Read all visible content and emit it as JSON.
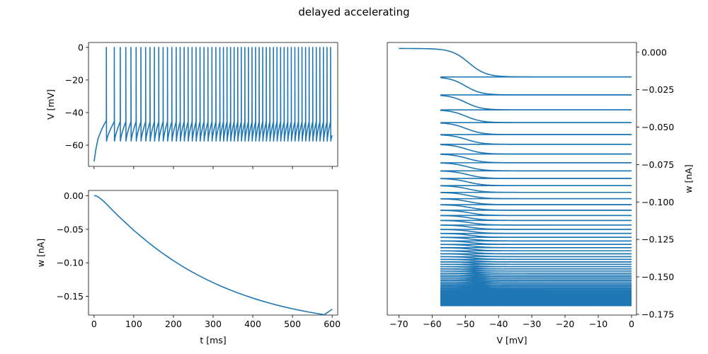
{
  "figure_title": "delayed accelerating",
  "chart_data": [
    {
      "type": "line",
      "panel": "voltage",
      "xlabel": "",
      "ylabel": "V [mV]",
      "xlim": [
        -14,
        614
      ],
      "ylim": [
        -73,
        3
      ],
      "x_ticks": [
        0,
        100,
        200,
        300,
        400,
        500,
        600
      ],
      "y_ticks": [
        0,
        -20,
        -40,
        -60
      ],
      "y_tick_labels": [
        "0",
        "−20",
        "−40",
        "−60"
      ],
      "x_tick_labels_shown": false,
      "series": [
        {
          "color": "#1f77b4",
          "initial_rise": {
            "x": [
              0,
              5,
              10,
              18,
              26,
              31
            ],
            "y": [
              -70,
              -62,
              -56,
              -51,
              -47,
              -45
            ]
          },
          "spike_times": [
            31,
            51,
            66,
            80,
            93,
            106,
            118,
            130,
            141,
            152,
            163,
            174,
            185,
            196,
            207,
            217,
            227,
            237,
            247,
            257,
            267,
            277,
            287,
            297,
            307,
            317,
            326,
            335,
            344,
            353,
            362,
            371,
            380,
            389,
            398,
            407,
            416,
            425,
            434,
            443,
            452,
            461,
            470,
            479,
            488,
            497,
            506,
            515,
            524,
            533,
            542,
            551,
            560,
            569,
            578,
            587,
            596
          ],
          "spike_peak": 0,
          "reset": -57.5,
          "end": {
            "x": 600,
            "y": -54
          }
        }
      ]
    },
    {
      "type": "line",
      "panel": "adaptation",
      "xlabel": "t [ms]",
      "ylabel": "w [nA]",
      "xlim": [
        -14,
        614
      ],
      "ylim": [
        -0.178,
        0.008
      ],
      "x_ticks": [
        0,
        100,
        200,
        300,
        400,
        500,
        600
      ],
      "x_tick_labels": [
        "0",
        "100",
        "200",
        "300",
        "400",
        "500",
        "600"
      ],
      "y_ticks": [
        0.0,
        -0.05,
        -0.1,
        -0.15
      ],
      "y_tick_labels": [
        "0.00",
        "−0.05",
        "−0.10",
        "−0.15"
      ],
      "series": [
        {
          "color": "#1f77b4",
          "x": [
            0,
            5,
            10,
            20,
            30,
            40,
            50,
            60,
            70,
            80,
            90,
            100,
            120,
            140,
            160,
            180,
            200,
            220,
            240,
            260,
            280,
            300,
            320,
            340,
            360,
            380,
            400,
            420,
            440,
            460,
            480,
            500,
            520,
            540,
            560,
            580,
            600
          ],
          "y": [
            0.0,
            0.0,
            -0.0015,
            -0.006,
            -0.0115,
            -0.0175,
            -0.0235,
            -0.0295,
            -0.035,
            -0.0405,
            -0.046,
            -0.0515,
            -0.0615,
            -0.0712,
            -0.0803,
            -0.0888,
            -0.0968,
            -0.1043,
            -0.1113,
            -0.1178,
            -0.1239,
            -0.1296,
            -0.1349,
            -0.1398,
            -0.1444,
            -0.1487,
            -0.1527,
            -0.1564,
            -0.1598,
            -0.163,
            -0.1659,
            -0.1686,
            -0.1711,
            -0.1734,
            -0.1755,
            -0.1775,
            -0.1693
          ]
        }
      ]
    },
    {
      "type": "line",
      "panel": "phase-plane",
      "xlabel": "V [mV]",
      "ylabel": "w [nA]",
      "xlim": [
        -73.5,
        1.5
      ],
      "ylim": [
        -0.1755,
        0.0065
      ],
      "x_ticks": [
        -70,
        -60,
        -50,
        -40,
        -30,
        -20,
        -10,
        0
      ],
      "x_tick_labels": [
        "−70",
        "−60",
        "−50",
        "−40",
        "−30",
        "−20",
        "−10",
        "0"
      ],
      "y_ticks": [
        0.0,
        -0.025,
        -0.05,
        -0.075,
        -0.1,
        -0.125,
        -0.15,
        -0.175
      ],
      "y_tick_labels": [
        "0.000",
        "−0.025",
        "−0.050",
        "−0.075",
        "−0.100",
        "−0.125",
        "−0.150",
        "−0.175"
      ],
      "yaxis_side": "right",
      "series": [
        {
          "color": "#1f77b4",
          "first_trajectory": {
            "v_start": -70,
            "v_end": 0,
            "w_start": 0.0025,
            "w_end": -0.0165,
            "transition_v": -49
          },
          "reset_v": -57.5,
          "spike_v": 0,
          "w_levels": [
            -0.0165,
            -0.0285,
            -0.0385,
            -0.047,
            -0.055,
            -0.0615,
            -0.068,
            -0.0738,
            -0.0792,
            -0.0843,
            -0.0891,
            -0.0936,
            -0.0978,
            -0.1018,
            -0.1055,
            -0.109,
            -0.1123,
            -0.1154,
            -0.1183,
            -0.121,
            -0.1236,
            -0.126,
            -0.1283,
            -0.1305,
            -0.1326,
            -0.1346,
            -0.1365,
            -0.1383,
            -0.14,
            -0.1416,
            -0.1432,
            -0.1447,
            -0.1461,
            -0.1475,
            -0.1488,
            -0.15,
            -0.1512,
            -0.1523,
            -0.1534,
            -0.1544,
            -0.1554,
            -0.1563,
            -0.1572,
            -0.158,
            -0.1588,
            -0.1596,
            -0.1603,
            -0.161,
            -0.1617,
            -0.1623,
            -0.1629,
            -0.1635,
            -0.164,
            -0.1645,
            -0.165,
            -0.1655,
            -0.166,
            -0.1664,
            -0.1668,
            -0.1672,
            -0.1676,
            -0.168,
            -0.1684,
            -0.1688,
            -0.1692
          ]
        }
      ]
    }
  ]
}
